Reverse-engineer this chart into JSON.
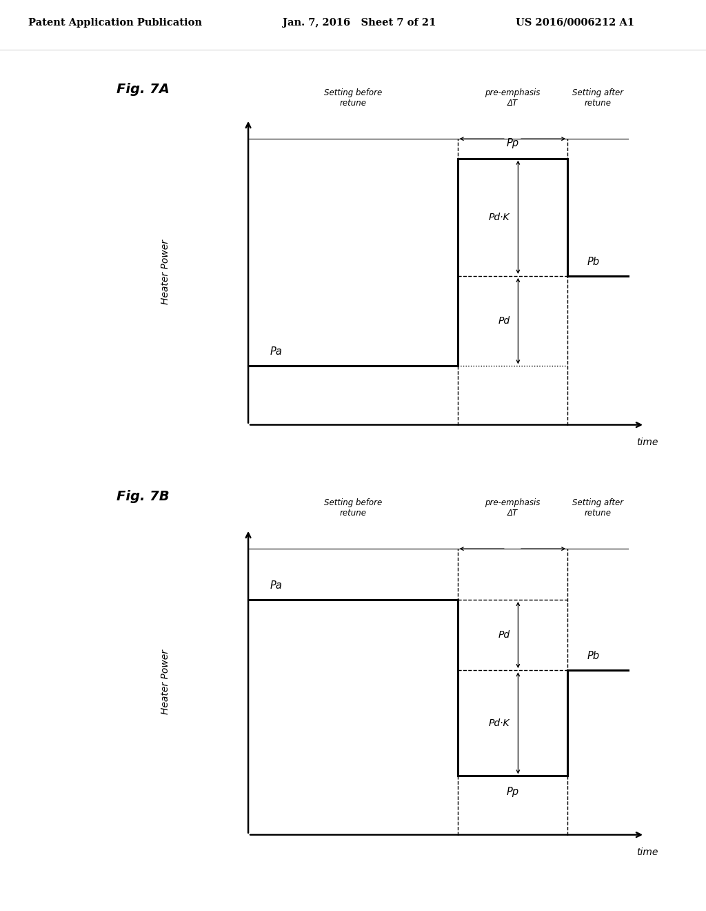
{
  "bg_color": "#ffffff",
  "header_left": "Patent Application Publication",
  "header_mid": "Jan. 7, 2016   Sheet 7 of 21",
  "header_right": "US 2016/0006212 A1",
  "fig7A_label": "Fig. 7A",
  "fig7B_label": "Fig. 7B",
  "label_setting_before": "Setting before\nretune",
  "label_pre_emphasis": "pre-emphasis\nΔT",
  "label_setting_after": "Setting after\nretune",
  "label_heater_power": "Heater Power",
  "label_time": "time",
  "label_Pa": "Pa",
  "label_Pb": "Pb",
  "label_Pp": "Pp",
  "label_Pd": "Pd",
  "label_PdK": "Pd·K"
}
